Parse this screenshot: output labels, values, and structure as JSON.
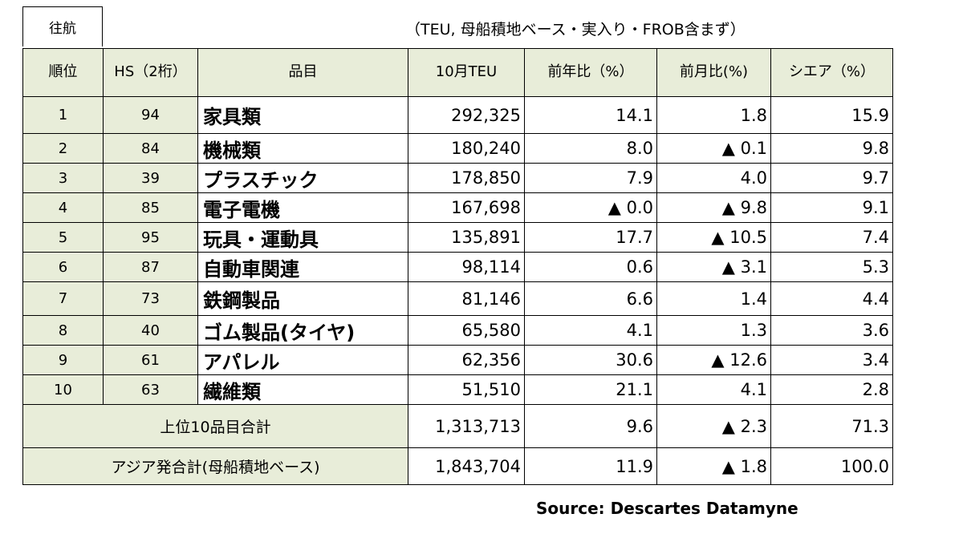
{
  "header": {
    "direction_label": "往航",
    "note": "（TEU, 母船積地ベース・実入り・FROB含まず）"
  },
  "table": {
    "columns": [
      "順位",
      "HS（2桁）",
      "品目",
      "10月TEU",
      "前年比（%）",
      "前月比(%)",
      "シエア（%）"
    ],
    "rows": [
      {
        "rank": "1",
        "hs": "94",
        "item": "家具類",
        "teu": "292,325",
        "yoy": "14.1",
        "mom": "1.8",
        "share": "15.9"
      },
      {
        "rank": "2",
        "hs": "84",
        "item": "機械類",
        "teu": "180,240",
        "yoy": "8.0",
        "mom": "▲ 0.1",
        "share": "9.8"
      },
      {
        "rank": "3",
        "hs": "39",
        "item": "プラスチック",
        "teu": "178,850",
        "yoy": "7.9",
        "mom": "4.0",
        "share": "9.7"
      },
      {
        "rank": "4",
        "hs": "85",
        "item": "電子電機",
        "teu": "167,698",
        "yoy": "▲ 0.0",
        "mom": "▲ 9.8",
        "share": "9.1"
      },
      {
        "rank": "5",
        "hs": "95",
        "item": "玩具・運動具",
        "teu": "135,891",
        "yoy": "17.7",
        "mom": "▲ 10.5",
        "share": "7.4"
      },
      {
        "rank": "6",
        "hs": "87",
        "item": "自動車関連",
        "teu": "98,114",
        "yoy": "0.6",
        "mom": "▲ 3.1",
        "share": "5.3"
      },
      {
        "rank": "7",
        "hs": "73",
        "item": "鉄鋼製品",
        "teu": "81,146",
        "yoy": "6.6",
        "mom": "1.4",
        "share": "4.4"
      },
      {
        "rank": "8",
        "hs": "40",
        "item": "ゴム製品(タイヤ)",
        "teu": "65,580",
        "yoy": "4.1",
        "mom": "1.3",
        "share": "3.6"
      },
      {
        "rank": "9",
        "hs": "61",
        "item": "アパレル",
        "teu": "62,356",
        "yoy": "30.6",
        "mom": "▲ 12.6",
        "share": "3.4"
      },
      {
        "rank": "10",
        "hs": "63",
        "item": "繊維類",
        "teu": "51,510",
        "yoy": "21.1",
        "mom": "4.1",
        "share": "2.8"
      }
    ],
    "totals": [
      {
        "label": "上位10品目合計",
        "teu": "1,313,713",
        "yoy": "9.6",
        "mom": "▲ 2.3",
        "share": "71.3"
      },
      {
        "label": "アジア発合計(母船積地ベース)",
        "teu": "1,843,704",
        "yoy": "11.9",
        "mom": "▲ 1.8",
        "share": "100.0"
      }
    ]
  },
  "source": "Source: Descartes Datamyne"
}
